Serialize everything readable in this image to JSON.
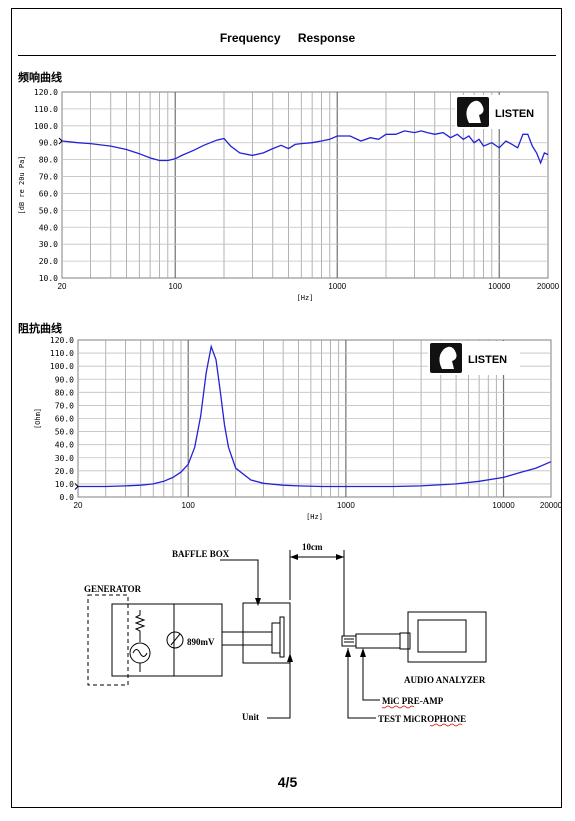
{
  "header": {
    "title": "Frequency    Response"
  },
  "charts": {
    "freq": {
      "title": "频响曲线",
      "ylabel": "[dB re 20u Pa]",
      "xlabel": "[Hz]",
      "logo": "LISTEN"
    },
    "imp": {
      "title": "阻抗曲线",
      "ylabel": "[Ohm]",
      "xlabel": "[Hz]",
      "logo": "LISTEN"
    }
  },
  "chart_data": [
    {
      "type": "line",
      "title": "频响曲线",
      "xlabel": "[Hz]",
      "ylabel": "[dB re 20u Pa]",
      "x_scale": "log",
      "xlim": [
        20,
        20000
      ],
      "ylim": [
        10,
        120
      ],
      "x_ticks": [
        20,
        100,
        1000,
        10000,
        20000
      ],
      "y_ticks": [
        10,
        20,
        30,
        40,
        50,
        60,
        70,
        80,
        90,
        100,
        110,
        120
      ],
      "grid": true,
      "color": "#2323d6",
      "series": [
        {
          "x": [
            20,
            25,
            30,
            40,
            50,
            60,
            70,
            80,
            90,
            100,
            110,
            130,
            150,
            180,
            200,
            220,
            250,
            300,
            350,
            400,
            450,
            500,
            550,
            600,
            700,
            800,
            900,
            1000,
            1200,
            1400,
            1600,
            1800,
            2000,
            2300,
            2600,
            3000,
            3300,
            3600,
            4000,
            4500,
            5000,
            5500,
            6000,
            6500,
            7000,
            7500,
            8000,
            9000,
            10000,
            11000,
            12000,
            13000,
            14000,
            15000,
            16000,
            17000,
            18000,
            19000,
            20000
          ],
          "y": [
            91,
            90,
            89.5,
            88,
            86,
            83.5,
            81,
            79.5,
            79.5,
            80.5,
            82.5,
            85.5,
            88.5,
            91.5,
            92.5,
            88,
            84,
            82.5,
            84,
            86.5,
            88.5,
            86.5,
            89,
            89.5,
            90,
            91,
            92,
            94,
            94,
            91,
            93,
            92,
            95,
            95,
            97,
            96,
            97,
            96,
            95,
            96,
            93,
            95,
            92,
            94,
            90,
            92,
            88,
            90,
            87,
            91,
            89,
            87,
            95,
            95,
            88,
            84,
            78,
            84,
            83
          ]
        }
      ]
    },
    {
      "type": "line",
      "title": "阻抗曲线",
      "xlabel": "[Hz]",
      "ylabel": "[Ohm]",
      "x_scale": "log",
      "xlim": [
        20,
        20000
      ],
      "ylim": [
        0,
        120
      ],
      "x_ticks": [
        20,
        100,
        1000,
        10000,
        20000
      ],
      "y_ticks": [
        0,
        10,
        20,
        30,
        40,
        50,
        60,
        70,
        80,
        90,
        100,
        110,
        120
      ],
      "grid": true,
      "color": "#2323d6",
      "series": [
        {
          "x": [
            20,
            30,
            40,
            50,
            60,
            70,
            80,
            90,
            100,
            110,
            120,
            130,
            140,
            150,
            160,
            170,
            180,
            200,
            250,
            300,
            400,
            500,
            700,
            1000,
            1500,
            2000,
            3000,
            5000,
            7000,
            10000,
            13000,
            16000,
            20000
          ],
          "y": [
            8,
            8,
            8.5,
            9,
            10,
            12,
            15,
            19,
            25,
            38,
            62,
            95,
            115,
            105,
            80,
            55,
            38,
            22,
            13,
            10.5,
            9,
            8.5,
            8,
            8,
            8,
            8,
            8.5,
            10,
            12,
            15,
            19,
            22,
            27
          ]
        }
      ]
    }
  ],
  "diagram": {
    "baffle_box": "BAFFLE BOX",
    "distance": "10cm",
    "generator": "GENERATOR",
    "voltage": "890mV",
    "unit": "Unit",
    "analyzer": "AUDIO ANALYZER",
    "preamp": "MiC PRE-AMP",
    "microphone": "TEST MiCROPHONE"
  },
  "footer": {
    "page": "4/5"
  }
}
